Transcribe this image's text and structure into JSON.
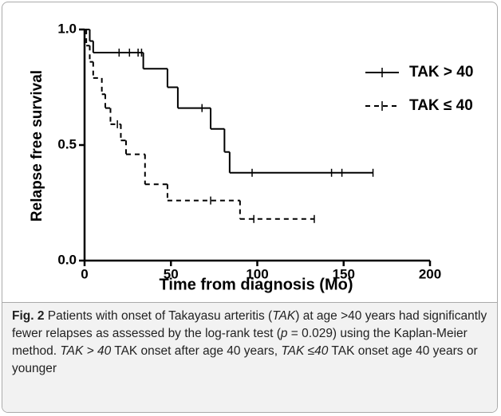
{
  "chart_data": {
    "type": "step",
    "xlabel": "Time from diagnosis (Mo)",
    "ylabel": "Relapse free survival",
    "xlim": [
      0,
      200
    ],
    "xticks": [
      0,
      50,
      100,
      150,
      200
    ],
    "ylim": [
      0,
      1
    ],
    "yticks": [
      {
        "value": 0,
        "label": "0.0"
      },
      {
        "value": 0.5,
        "label": "0.5"
      },
      {
        "value": 1,
        "label": "1.0"
      }
    ],
    "legend": "top-right",
    "series": [
      {
        "name": "TAK > 40",
        "color": "#000000",
        "dash": "solid",
        "x": [
          0,
          3,
          5,
          34,
          48,
          54,
          73,
          81,
          84,
          167
        ],
        "values": [
          1.0,
          0.95,
          0.9,
          0.83,
          0.75,
          0.66,
          0.57,
          0.47,
          0.38,
          0.38
        ],
        "censored": {
          "x": [
            20,
            26,
            31,
            33,
            68,
            97,
            143,
            149,
            167
          ],
          "values": [
            0.9,
            0.9,
            0.9,
            0.9,
            0.66,
            0.38,
            0.38,
            0.38,
            0.38
          ]
        }
      },
      {
        "name": "TAK ≤ 40",
        "color": "#000000",
        "dash": "dashed",
        "x": [
          0,
          1,
          3,
          5,
          10,
          12,
          15,
          21,
          24,
          35,
          48,
          90,
          133
        ],
        "values": [
          1.0,
          0.93,
          0.86,
          0.79,
          0.72,
          0.66,
          0.59,
          0.52,
          0.46,
          0.33,
          0.26,
          0.18,
          0.18
        ],
        "censored": {
          "x": [
            19,
            73,
            98,
            133
          ],
          "values": [
            0.59,
            0.26,
            0.18,
            0.18
          ]
        }
      }
    ],
    "caption": [
      "Fig. 2",
      " Patients with onset of Takayasu arteritis (",
      "TAK",
      ") at age >40 years had significantly fewer relapses as assessed by the log-rank test (",
      "p",
      " = 0.029) using the Kaplan-Meier method. ",
      "TAK > 40",
      " TAK onset after age 40 years, ",
      "TAK ≤40",
      " TAK onset age 40 years or younger"
    ]
  }
}
